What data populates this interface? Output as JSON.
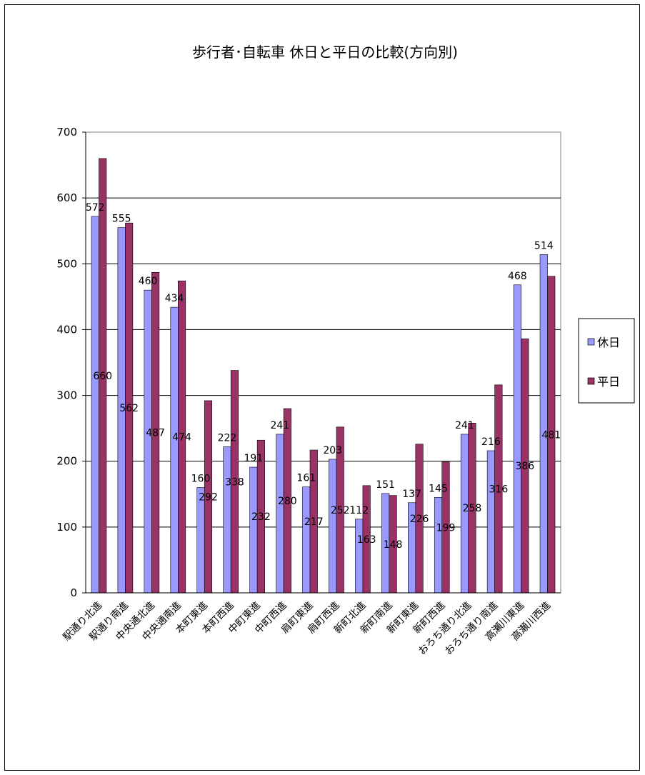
{
  "chart_data": {
    "type": "bar",
    "title": "歩行者･自転車 休日と平日の比較(方向別)",
    "categories": [
      "駅通り北進",
      "駅通り南進",
      "中央通北進",
      "中央通南進",
      "本町東進",
      "本町西進",
      "中町東進",
      "中町西進",
      "肩町東進",
      "肩町西進",
      "新町北進",
      "新町南進",
      "新町東進",
      "新町西進",
      "おろち通り北進",
      "おろち通り南進",
      "高瀬川東進",
      "高瀬川西進"
    ],
    "series": [
      {
        "name": "休日",
        "color": "#9999ff",
        "values": [
          572,
          555,
          460,
          434,
          160,
          222,
          191,
          241,
          161,
          203,
          112,
          151,
          137,
          145,
          241,
          216,
          468,
          514
        ]
      },
      {
        "name": "平日",
        "color": "#993366",
        "values": [
          660,
          562,
          487,
          474,
          292,
          338,
          232,
          280,
          217,
          252,
          163,
          148,
          226,
          199,
          258,
          316,
          386,
          481
        ]
      }
    ],
    "ylim": [
      0,
      700
    ],
    "yticks": [
      0,
      100,
      200,
      300,
      400,
      500,
      600,
      700
    ],
    "grid": true,
    "legend": "right"
  }
}
